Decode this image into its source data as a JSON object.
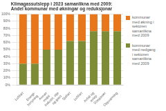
{
  "chart_data": {
    "type": "bar",
    "title": "Klimagassutslepp i 2023 samanlikna med 2009:\nAndel kommunar med økningar og reduksjonar",
    "categories": [
      "Luftfart",
      "Energi-\nforsyning",
      "Annan\nmobil",
      "Industri, olje\nog gass",
      "Sjøfart",
      "Luftfart",
      "Avfall og\navløp",
      "Stasjonær",
      "Oppvarming"
    ],
    "series": [
      {
        "name": "kommunar\nmed nedgang\ni sektoren\nsamanlikna\nmed 2009",
        "color": "#7d8c35",
        "values": [
          30,
          30,
          50,
          50,
          62,
          62,
          76,
          76,
          76
        ]
      },
      {
        "name": "kommunar\nmed økning i\nsektoren\nsamanlikna\nmed 2009",
        "color": "#e8761a",
        "values": [
          70,
          70,
          50,
          50,
          38,
          38,
          24,
          24,
          24
        ]
      }
    ],
    "stacked": true,
    "ylim": [
      0,
      100
    ],
    "yticks": [
      {
        "value": 0,
        "label": "0%"
      },
      {
        "value": 10,
        "label": "10%"
      },
      {
        "value": 20,
        "label": "20%"
      },
      {
        "value": 30,
        "label": "30%"
      },
      {
        "value": 40,
        "label": "40%"
      },
      {
        "value": 50,
        "label": "50%"
      },
      {
        "value": 60,
        "label": "60%"
      },
      {
        "value": 70,
        "label": "70%"
      },
      {
        "value": 80,
        "label": "80%"
      },
      {
        "value": 90,
        "label": "90%"
      },
      {
        "value": 100,
        "label": "100%"
      }
    ],
    "grid": true,
    "legend": "right"
  }
}
